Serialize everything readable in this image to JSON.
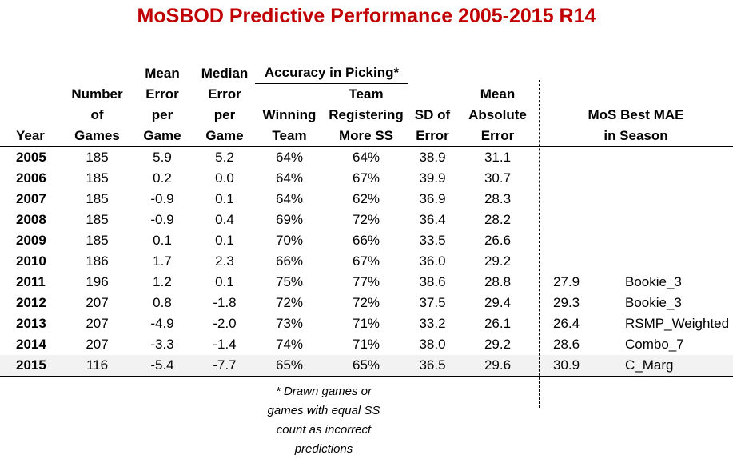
{
  "title": "MoSBOD Predictive Performance 2005-2015 R14",
  "columns": {
    "year": "Year",
    "games": [
      "Number",
      "of",
      "Games"
    ],
    "mean_err": [
      "Mean",
      "Error",
      "per",
      "Game"
    ],
    "median_err": [
      "Median",
      "Error",
      "per",
      "Game"
    ],
    "accuracy_group": "Accuracy in Picking*",
    "winning": [
      "Winning",
      "Team"
    ],
    "ss": [
      "Team",
      "Registering",
      "More SS"
    ],
    "sd": [
      "SD of",
      "Error"
    ],
    "mae": [
      "Mean",
      "Absolute",
      "Error"
    ],
    "best": [
      "MoS Best MAE",
      "in Season"
    ]
  },
  "footnote": [
    "* Drawn games or",
    "games with equal SS",
    "count as incorrect",
    "predictions"
  ],
  "chart_data": {
    "type": "table",
    "title": "MoSBOD Predictive Performance 2005-2015 R14",
    "headers": [
      "Year",
      "Number of Games",
      "Mean Error per Game",
      "Median Error per Game",
      "Winning Team",
      "Team Registering More SS",
      "SD of Error",
      "Mean Absolute Error",
      "MoS Best MAE in Season",
      ""
    ],
    "rows": [
      [
        "2005",
        "185",
        "5.9",
        "5.2",
        "64%",
        "64%",
        "38.9",
        "31.1",
        "",
        ""
      ],
      [
        "2006",
        "185",
        "0.2",
        "0.0",
        "64%",
        "67%",
        "39.9",
        "30.7",
        "",
        ""
      ],
      [
        "2007",
        "185",
        "-0.9",
        "0.1",
        "64%",
        "62%",
        "36.9",
        "28.3",
        "",
        ""
      ],
      [
        "2008",
        "185",
        "-0.9",
        "0.4",
        "69%",
        "72%",
        "36.4",
        "28.2",
        "",
        ""
      ],
      [
        "2009",
        "185",
        "0.1",
        "0.1",
        "70%",
        "66%",
        "33.5",
        "26.6",
        "",
        ""
      ],
      [
        "2010",
        "186",
        "1.7",
        "2.3",
        "66%",
        "67%",
        "36.0",
        "29.2",
        "",
        ""
      ],
      [
        "2011",
        "196",
        "1.2",
        "0.1",
        "75%",
        "77%",
        "38.6",
        "28.8",
        "27.9",
        "Bookie_3"
      ],
      [
        "2012",
        "207",
        "0.8",
        "-1.8",
        "72%",
        "72%",
        "37.5",
        "29.4",
        "29.3",
        "Bookie_3"
      ],
      [
        "2013",
        "207",
        "-4.9",
        "-2.0",
        "73%",
        "71%",
        "33.2",
        "26.1",
        "26.4",
        "RSMP_Weighted"
      ],
      [
        "2014",
        "207",
        "-3.3",
        "-1.4",
        "74%",
        "71%",
        "38.0",
        "29.2",
        "28.6",
        "Combo_7"
      ],
      [
        "2015",
        "116",
        "-5.4",
        "-7.7",
        "65%",
        "65%",
        "36.5",
        "29.6",
        "30.9",
        "C_Marg"
      ]
    ]
  }
}
